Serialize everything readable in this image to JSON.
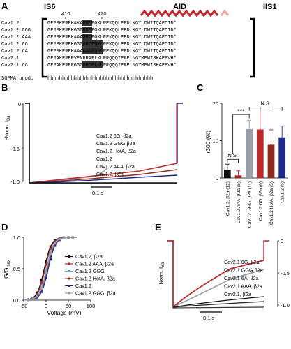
{
  "panels": {
    "a": "A",
    "b": "B",
    "c": "C",
    "d": "D",
    "e": "E"
  },
  "seq_panel": {
    "header_left": "IS6",
    "header_mid": "AID",
    "header_right": "IIS1",
    "tick_410": "410",
    "tick_420": "420",
    "rows": [
      {
        "name": "Cav1.2",
        "seq": "GEFSKEREKAKARGDFQKLREKQQLEEDLKGYLDWITQAEDID*"
      },
      {
        "name": "Cav1.2 GGG",
        "seq": "GEFSKEREKGGGRGDFQKLREKQQLEEDLKGYLDWITQAEDID*"
      },
      {
        "name": "Cav1.2 AAA",
        "seq": "GEFSKEREKAAARGDFQKLREKQQLEEDLKGYLDWITQAEDID*"
      },
      {
        "name": "Cav1.2 6G",
        "seq": "GEFSKEREKGGGGGGFQKLREKQQLEEDLKGYLDWITQAEDID*"
      },
      {
        "name": "Cav1.2 6A",
        "seq": "GEFSKEREKAAAAAAFQKLREKQQLEEDLKGYLDWITQAEDID*"
      },
      {
        "name": "Cav2.1",
        "seq": "GEFAKERERVENRRAFLKLRRQQQIERELNGYMEWISKAEEVH*"
      },
      {
        "name": "Cav2.1 6G",
        "seq": "GEFAKERERGGGGGGFLKLRRQQQIERELNGYMEWISKAEEVH*"
      }
    ],
    "sopma_label": "SOPMA prod.",
    "sopma_seq": "hhhhhhhhhhhhhhhhhhhhhhhhhhhhhhhhhhhh"
  },
  "panel_b": {
    "ylabel": "-Norm. I",
    "ylabel_sub": "Ba",
    "tick_0": "0",
    "tick_neg05": "-0.5",
    "tick_neg10": "-1.0",
    "scale": "0.1 s",
    "legend": [
      {
        "text": "Cav1.2 6G, β2a",
        "color": "#c0282b"
      },
      {
        "text": "Cav1.2 GGG β2a",
        "color": "#9aa0a8"
      },
      {
        "text": "Cav1.2 HotA, β2a",
        "color": "#8b2a1b"
      },
      {
        "text": "Cav1.2",
        "color": "#1f2a8c"
      },
      {
        "text": "Cav1.2 AAA, β2a",
        "color": "#111111"
      },
      {
        "text": "Cav1.2, β2a",
        "color": "#111111"
      }
    ]
  },
  "chart_data": {
    "type": "bar",
    "ylabel": "r300 (%)",
    "ylim": [
      0,
      20
    ],
    "yticks": [
      0,
      10,
      20
    ],
    "categories": [
      "Cav1.2, β2a (12)",
      "Cav1.2 AAA, β2a (5)",
      "Cav1.2 GGG, β2a (11)",
      "Cav1.2 6G, β2a (6)",
      "Cav1.2 HotA, β2a (5)",
      "Cav1.2 (5)"
    ],
    "values": [
      2.2,
      0.7,
      13.1,
      13.0,
      8.9,
      10.9
    ],
    "errors": [
      1.5,
      1.2,
      2.3,
      6.0,
      4.0,
      3.0
    ],
    "colors": [
      "#111111",
      "#b22222",
      "#9aa0a8",
      "#c0282b",
      "#8b2a1b",
      "#1f2a8c"
    ],
    "annotations": {
      "ns1": "N.S.",
      "sig": "***",
      "ns2": "N.S."
    }
  },
  "panel_d": {
    "ylabel": "G/G",
    "ylabel_sub": "max",
    "xlabel": "Voltage (mV)",
    "xticks": [
      "-50",
      "0",
      "50",
      "100"
    ],
    "yticks": [
      "0.0",
      "0.5",
      "1.0"
    ],
    "legend": [
      {
        "text": "Cav1.2, β2a",
        "color": "#111111"
      },
      {
        "text": "Cav1.2 AAA, β2a",
        "color": "#b22222"
      },
      {
        "text": "Cav1.2 GGG",
        "color": "#5aa7d6"
      },
      {
        "text": "Cav1.2 HotA, β2a",
        "color": "#8b2a1b"
      },
      {
        "text": "Cav1.2",
        "color": "#1f2a8c"
      },
      {
        "text": "Cav1.2 GGG, β2a",
        "color": "#9aa0a8"
      }
    ]
  },
  "panel_e": {
    "ylabel": "-Norm. I",
    "ylabel_sub": "Ba",
    "tick_0": "0",
    "tick_neg05": "-0.5",
    "tick_neg10": "-1.0",
    "scale": "0.1 s",
    "legend": [
      {
        "text": "Cav2.1 6G, β2a",
        "color": "#c0282b"
      },
      {
        "text": "Cav2.1 GGG β2a",
        "color": "#9aa0a8"
      },
      {
        "text": "Cav2.1 6A, β2a",
        "color": "#111111"
      },
      {
        "text": "Cav2.1 AAA, β2a",
        "color": "#111111"
      },
      {
        "text": "Cav2.1, β2a",
        "color": "#111111"
      }
    ]
  }
}
